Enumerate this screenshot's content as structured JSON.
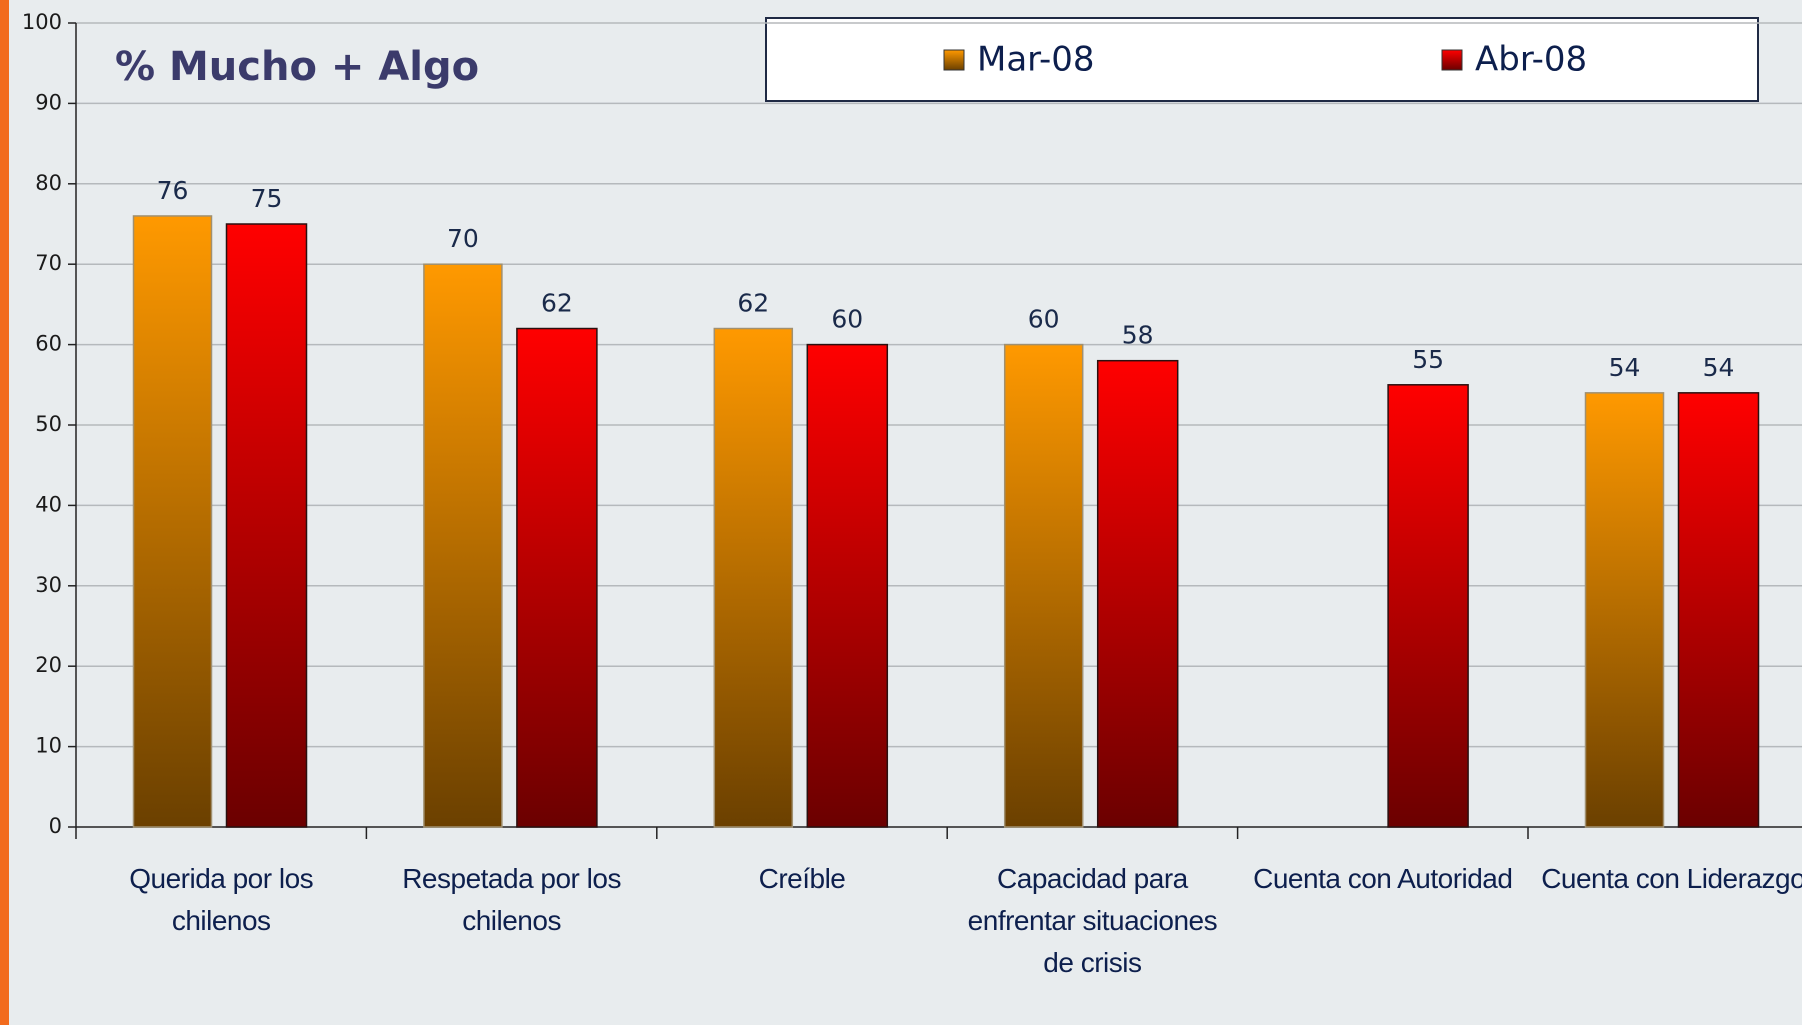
{
  "chart_data": {
    "type": "bar",
    "title": "% Mucho + Algo",
    "categories": [
      "Querida por los chilenos",
      "Respetada por los chilenos",
      "Creíble",
      "Capacidad para enfrentar situaciones de crisis",
      "Cuenta con Autoridad",
      "Cuenta con Liderazgo"
    ],
    "series": [
      {
        "name": "Mar-08",
        "color": "#ff9900",
        "values": [
          76,
          70,
          62,
          60,
          null,
          54
        ]
      },
      {
        "name": "Abr-08",
        "color": "#ff0000",
        "values": [
          75,
          62,
          60,
          58,
          55,
          54
        ]
      }
    ],
    "ylim": [
      0,
      100
    ],
    "yticks": [
      0,
      10,
      20,
      30,
      40,
      50,
      60,
      70,
      80,
      90,
      100
    ],
    "grid": true
  }
}
